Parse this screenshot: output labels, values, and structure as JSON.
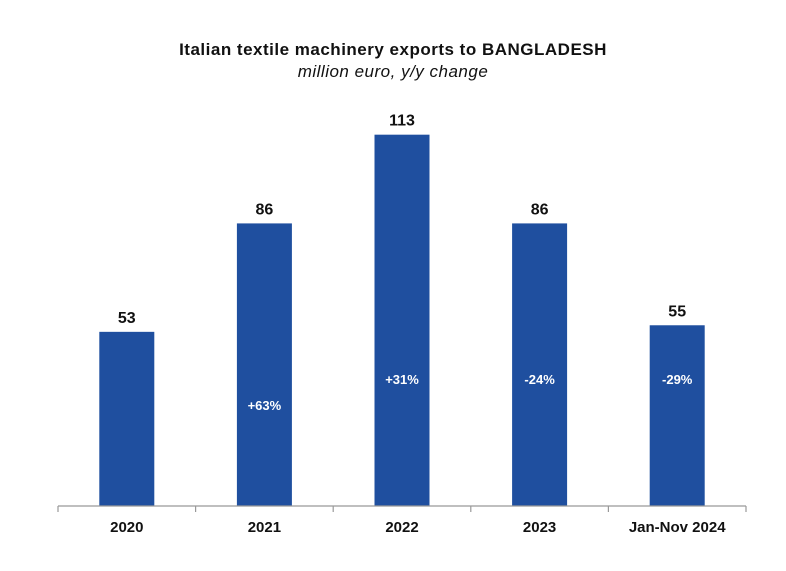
{
  "chart_data": {
    "type": "bar",
    "title": "Italian textile machinery exports to BANGLADESH",
    "subtitle": "million euro, y/y change",
    "categories": [
      "2020",
      "2021",
      "2022",
      "2023",
      "Jan-Nov 2024"
    ],
    "values": [
      53,
      86,
      113,
      86,
      55
    ],
    "changes": [
      "",
      "+63%",
      "+31%",
      "-24%",
      "-29%"
    ],
    "ylim": [
      0,
      120
    ],
    "grid": false,
    "bar_color": "#1f4f9f"
  }
}
